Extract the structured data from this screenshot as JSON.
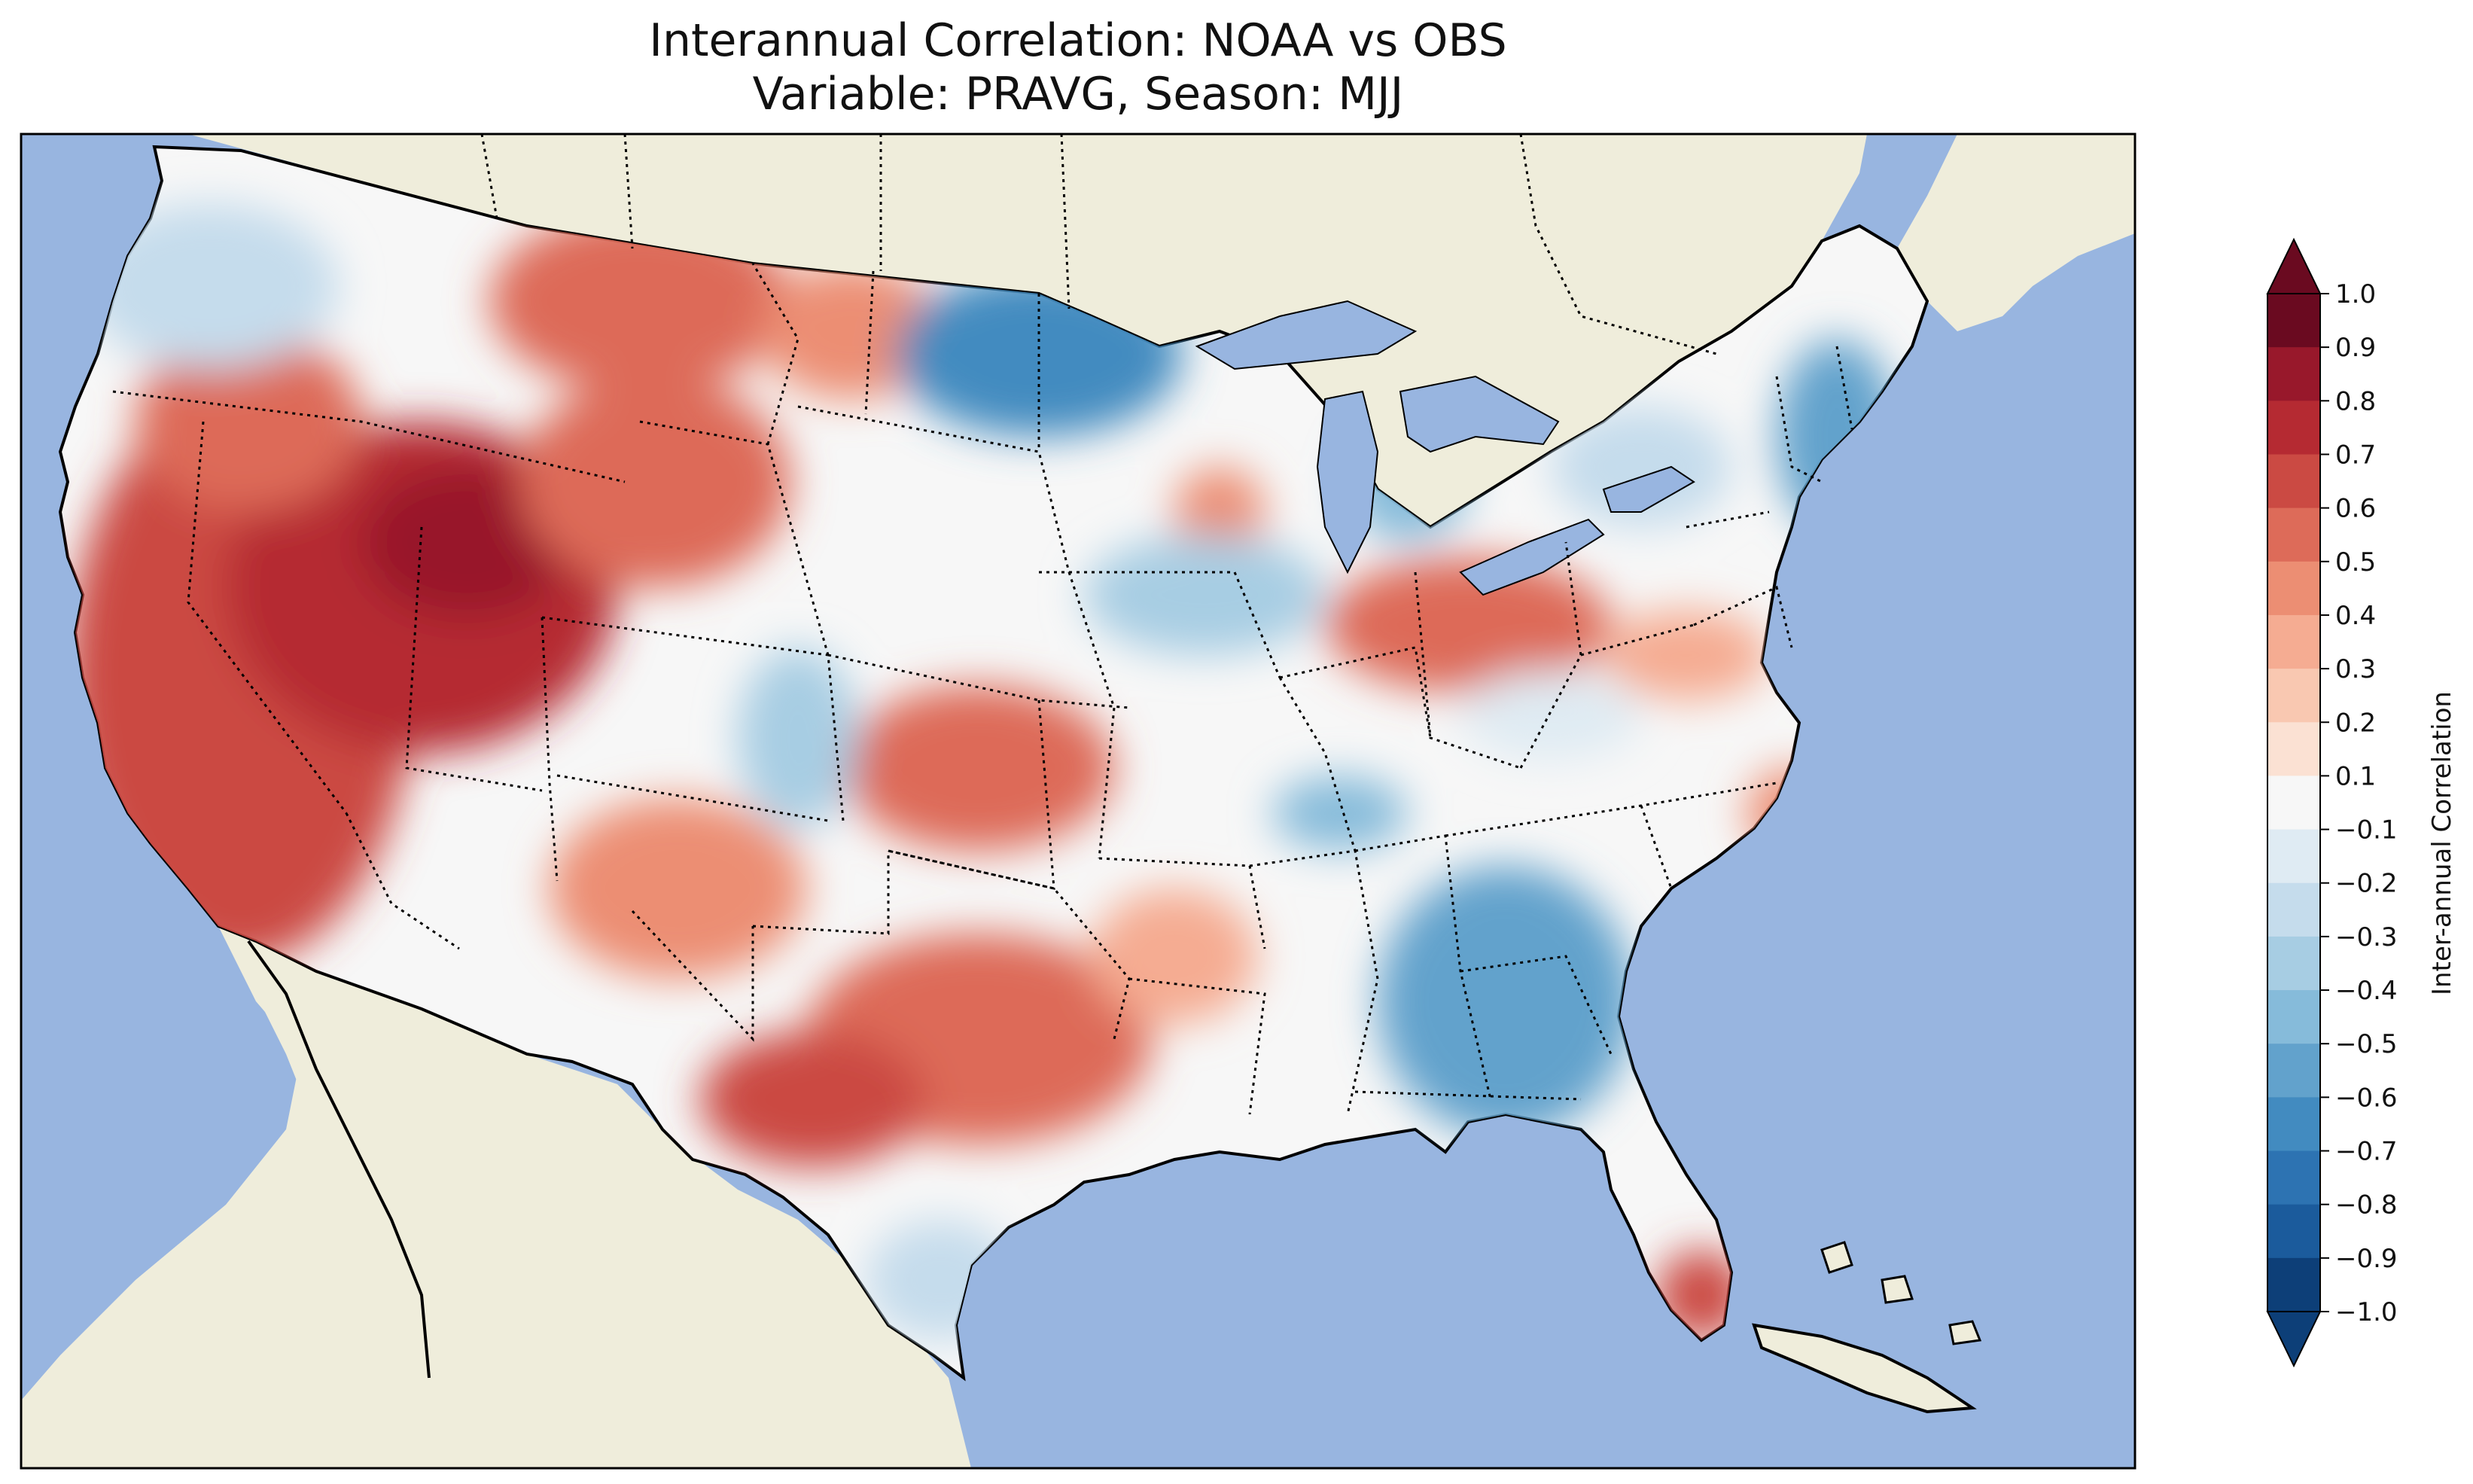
{
  "chart_data": {
    "type": "heatmap",
    "title": "Interannual Correlation: NOAA vs OBS",
    "subtitle": "Variable: PRAVG, Season: MJJ",
    "colorbar": {
      "label": "Inter-annual Correlation",
      "range": [
        -1.0,
        1.0
      ],
      "extend": "both",
      "ticks": [
        "1.0",
        "0.9",
        "0.8",
        "0.7",
        "0.6",
        "0.5",
        "0.4",
        "0.3",
        "0.2",
        "0.1",
        "−0.1",
        "−0.2",
        "−0.3",
        "−0.4",
        "−0.5",
        "−0.6",
        "−0.7",
        "−0.8",
        "−0.9",
        "−1.0"
      ],
      "levels": [
        {
          "lo": 0.9,
          "hi": 1.0,
          "color": "#6a0a20"
        },
        {
          "lo": 0.8,
          "hi": 0.9,
          "color": "#98182b"
        },
        {
          "lo": 0.7,
          "hi": 0.8,
          "color": "#b52a32"
        },
        {
          "lo": 0.6,
          "hi": 0.7,
          "color": "#cb4a43"
        },
        {
          "lo": 0.5,
          "hi": 0.6,
          "color": "#dd6b59"
        },
        {
          "lo": 0.4,
          "hi": 0.5,
          "color": "#ec8e73"
        },
        {
          "lo": 0.3,
          "hi": 0.4,
          "color": "#f5ac92"
        },
        {
          "lo": 0.2,
          "hi": 0.3,
          "color": "#f9c8b1"
        },
        {
          "lo": 0.1,
          "hi": 0.2,
          "color": "#fbe1d3"
        },
        {
          "lo": -0.1,
          "hi": 0.1,
          "color": "#f7f7f7"
        },
        {
          "lo": -0.2,
          "hi": -0.1,
          "color": "#dfebf3"
        },
        {
          "lo": -0.3,
          "hi": -0.2,
          "color": "#c5dcec"
        },
        {
          "lo": -0.4,
          "hi": -0.3,
          "color": "#a7cde3"
        },
        {
          "lo": -0.5,
          "hi": -0.4,
          "color": "#86bbda"
        },
        {
          "lo": -0.6,
          "hi": -0.5,
          "color": "#62a2cc"
        },
        {
          "lo": -0.7,
          "hi": -0.6,
          "color": "#428bc0"
        },
        {
          "lo": -0.8,
          "hi": -0.7,
          "color": "#2d73b2"
        },
        {
          "lo": -0.9,
          "hi": -0.8,
          "color": "#1b5b9c"
        },
        {
          "lo": -1.0,
          "hi": -0.9,
          "color": "#0d3f78"
        }
      ]
    },
    "map": {
      "region": "Contiguous United States",
      "ocean_color": "#98b5e0",
      "land_color": "#efeddb",
      "regions": [
        {
          "name": "California / Great Basin",
          "correlation": 0.8
        },
        {
          "name": "Northern Rockies (Wyoming/Idaho)",
          "correlation": 0.85
        },
        {
          "name": "Montana",
          "correlation": 0.6
        },
        {
          "name": "North Dakota",
          "correlation": 0.5
        },
        {
          "name": "Minnesota / Upper Midwest",
          "correlation": -0.6
        },
        {
          "name": "Pacific Northwest coast",
          "correlation": -0.2
        },
        {
          "name": "Kansas / Oklahoma",
          "correlation": 0.5
        },
        {
          "name": "Texas / New Mexico",
          "correlation": 0.6
        },
        {
          "name": "Southeast (Georgia/Alabama)",
          "correlation": -0.5
        },
        {
          "name": "New England",
          "correlation": -0.6
        },
        {
          "name": "Ohio Valley",
          "correlation": 0.6
        },
        {
          "name": "South Florida",
          "correlation": 0.7
        },
        {
          "name": "Michigan",
          "correlation": -0.3
        }
      ]
    }
  }
}
